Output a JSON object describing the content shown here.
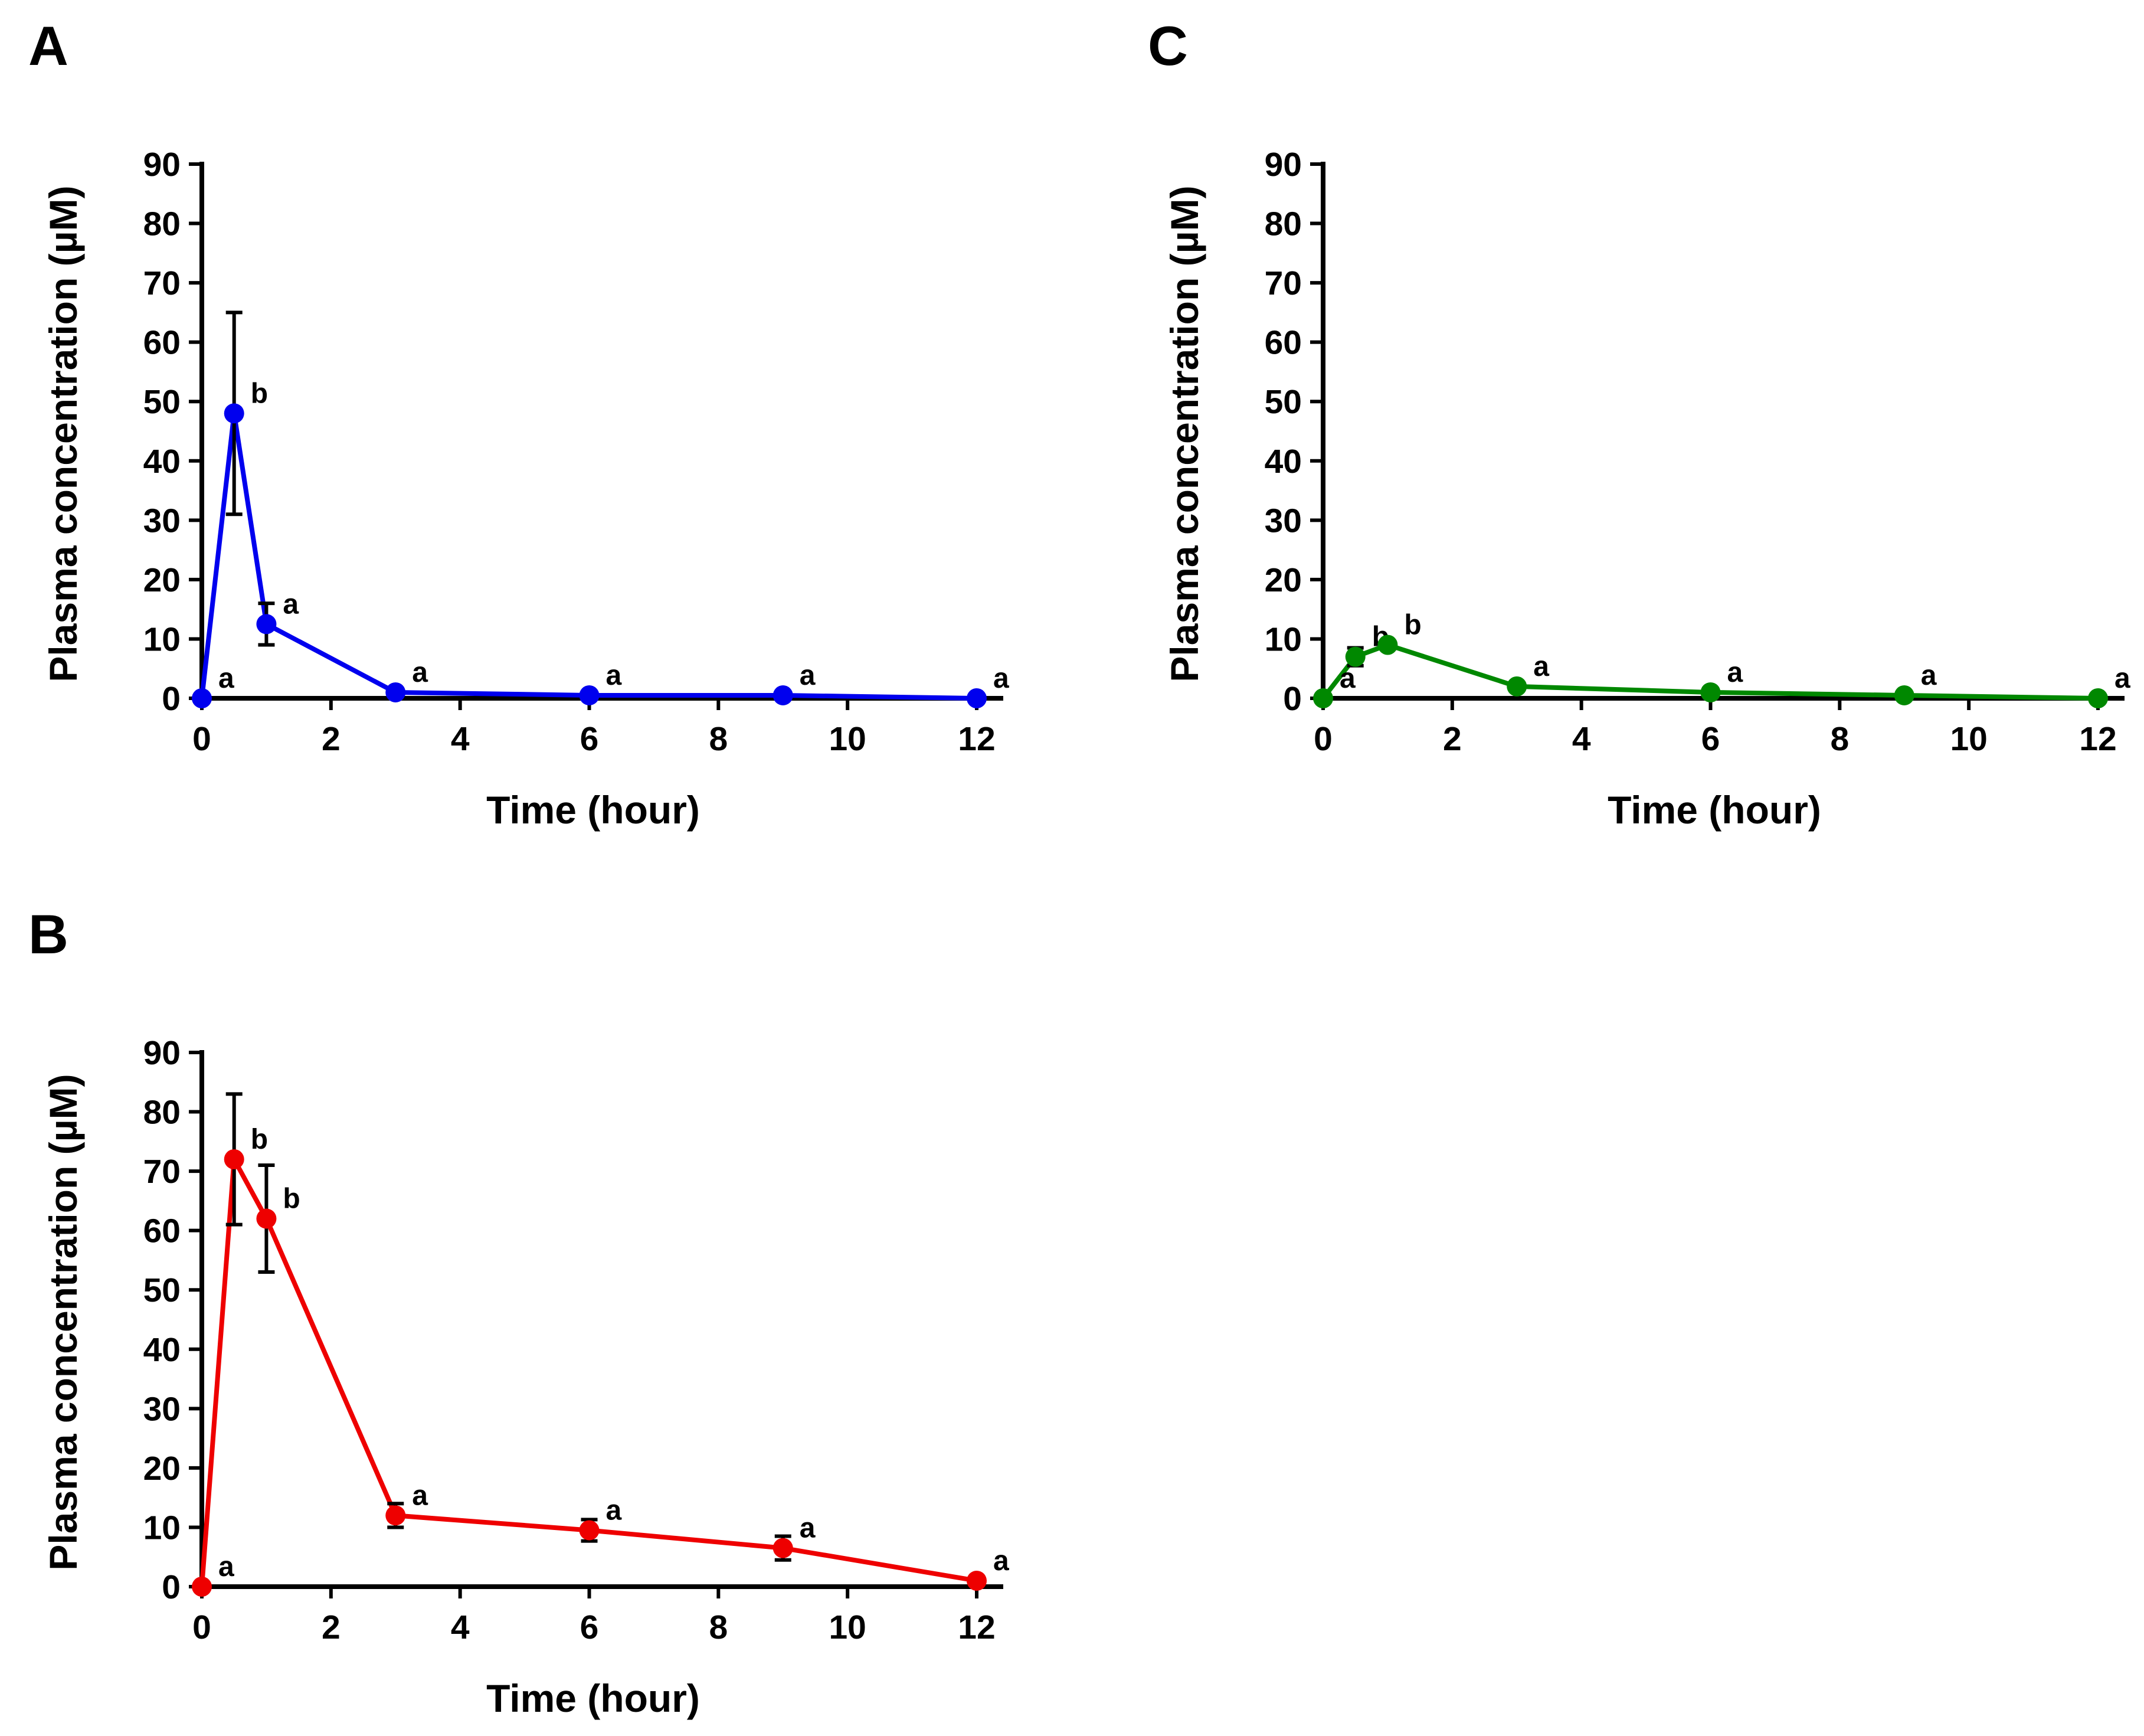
{
  "chart_data": [
    {
      "panel": "A",
      "type": "line",
      "color": "#0000ee",
      "xlabel": "Time (hour)",
      "ylabel": "Plasma concentration (µM)",
      "xlim": [
        0,
        12
      ],
      "ylim": [
        0,
        90
      ],
      "xticks": [
        "0",
        "2",
        "4",
        "6",
        "8",
        "10",
        "12"
      ],
      "yticks": [
        "0",
        "10",
        "20",
        "30",
        "40",
        "50",
        "60",
        "70",
        "80",
        "90"
      ],
      "x": [
        0,
        0.5,
        1,
        3,
        6,
        9,
        12
      ],
      "y": [
        0,
        48,
        12.5,
        1,
        0.5,
        0.5,
        0
      ],
      "error": [
        0,
        17,
        3.5,
        0,
        0,
        0,
        0
      ],
      "significance": [
        "a",
        "b",
        "a",
        "a",
        "a",
        "a",
        "a"
      ]
    },
    {
      "panel": "B",
      "type": "line",
      "color": "#ee0000",
      "xlabel": "Time (hour)",
      "ylabel": "Plasma concentration (µM)",
      "xlim": [
        0,
        12
      ],
      "ylim": [
        0,
        90
      ],
      "xticks": [
        "0",
        "2",
        "4",
        "6",
        "8",
        "10",
        "12"
      ],
      "yticks": [
        "0",
        "10",
        "20",
        "30",
        "40",
        "50",
        "60",
        "70",
        "80",
        "90"
      ],
      "x": [
        0,
        0.5,
        1,
        3,
        6,
        9,
        12
      ],
      "y": [
        0,
        72,
        62,
        12,
        9.5,
        6.5,
        1
      ],
      "error": [
        0,
        11,
        9,
        2,
        1.8,
        2,
        0
      ],
      "significance": [
        "a",
        "b",
        "b",
        "a",
        "a",
        "a",
        "a"
      ]
    },
    {
      "panel": "C",
      "type": "line",
      "color": "#008800",
      "xlabel": "Time (hour)",
      "ylabel": "Plasma concentration (µM)",
      "xlim": [
        0,
        12
      ],
      "ylim": [
        0,
        90
      ],
      "xticks": [
        "0",
        "2",
        "4",
        "6",
        "8",
        "10",
        "12"
      ],
      "yticks": [
        "0",
        "10",
        "20",
        "30",
        "40",
        "50",
        "60",
        "70",
        "80",
        "90"
      ],
      "x": [
        0,
        0.5,
        1,
        3,
        6,
        9,
        12
      ],
      "y": [
        0,
        7,
        9,
        2,
        1,
        0.5,
        0
      ],
      "error": [
        0,
        1.5,
        0.5,
        0,
        0,
        0,
        0
      ],
      "significance": [
        "a",
        "b",
        "b",
        "a",
        "a",
        "a",
        "a"
      ]
    }
  ]
}
